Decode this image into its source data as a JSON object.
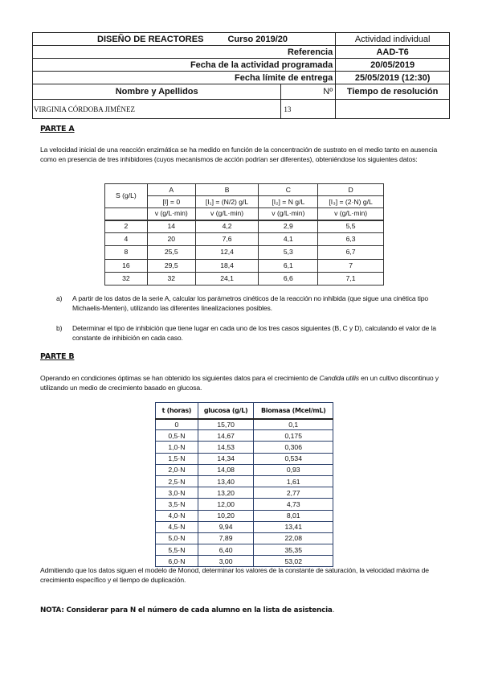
{
  "header": {
    "title": "DISEÑO DE REACTORES",
    "course": "Curso 2019/20",
    "activity_type": "Actividad individual",
    "reference_label": "Referencia",
    "reference": "AAD-T6",
    "scheduled_label": "Fecha de la actividad programada",
    "scheduled": "20/05/2019",
    "deadline_label": "Fecha límite de entrega",
    "deadline": "25/05/2019 (12:30)",
    "name_label": "Nombre y Apellidos",
    "number_label": "Nº",
    "time_label": "Tiempo de resolución",
    "name": "VIRGINIA CÓRDOBA JIMÉNEZ",
    "number": "13",
    "time": ""
  },
  "parte_a": {
    "heading": "PARTE A",
    "intro": "La velocidad inicial de una reacción enzimática se ha medido en función de la concentración de sustrato en el medio tanto en ausencia como en presencia de tres inhibidores (cuyos mecanismos de acción podrían ser diferentes), obteniéndose los siguientes datos:",
    "table": {
      "s_header": "S (g/L)",
      "series": [
        "A",
        "B",
        "C",
        "D"
      ],
      "conditions": [
        "[I] = 0",
        "[I₁] = (N/2) g/L",
        "[I₂] = N g/L",
        "[I₃] = (2·N) g/L"
      ],
      "unit": "v (g/L·min)",
      "rows": [
        [
          "2",
          "14",
          "4,2",
          "2,9",
          "5,5"
        ],
        [
          "4",
          "20",
          "7,6",
          "4,1",
          "6,3"
        ],
        [
          "8",
          "25,5",
          "12,4",
          "5,3",
          "6,7"
        ],
        [
          "16",
          "29,5",
          "18,4",
          "6,1",
          "7"
        ],
        [
          "32",
          "32",
          "24,1",
          "6,6",
          "7,1"
        ]
      ]
    },
    "questions": [
      {
        "marker": "a)",
        "text": "A partir de los datos de la serie A, calcular los parámetros cinéticos de la reacción no inhibida (que sigue una cinética tipo Michaelis-Menten), utilizando las diferentes linealizaciones posibles."
      },
      {
        "marker": "b)",
        "text": "Determinar el tipo de inhibición que tiene lugar en cada uno de los tres casos siguientes (B, C y D), calculando el valor de la constante de inhibición en cada caso."
      }
    ]
  },
  "parte_b": {
    "heading": "PARTE B",
    "intro_before": "Operando en condiciones óptimas se han obtenido los siguientes datos para el crecimiento de ",
    "organism": "Candida utilis",
    "intro_after": " en un cultivo discontinuo y utilizando un medio de crecimiento basado en glucosa.",
    "table": {
      "headers": [
        "t (horas)",
        "glucosa (g/L)",
        "Biomasa (Mcel/mL)"
      ],
      "rows": [
        [
          "0",
          "15,70",
          "0,1"
        ],
        [
          "0,5·N",
          "14,67",
          "0,175"
        ],
        [
          "1,0·N",
          "14,53",
          "0,306"
        ],
        [
          "1,5·N",
          "14,34",
          "0,534"
        ],
        [
          "2,0·N",
          "14,08",
          "0,93"
        ],
        [
          "2,5·N",
          "13,40",
          "1,61"
        ],
        [
          "3,0·N",
          "13,20",
          "2,77"
        ],
        [
          "3,5·N",
          "12,00",
          "4,73"
        ],
        [
          "4,0·N",
          "10,20",
          "8,01"
        ],
        [
          "4,5·N",
          "9,94",
          "13,41"
        ],
        [
          "5,0·N",
          "7,89",
          "22,08"
        ],
        [
          "5,5·N",
          "6,40",
          "35,35"
        ],
        [
          "6,0·N",
          "3,00",
          "53,02"
        ]
      ]
    },
    "question": "Admitiendo que los datos siguen el modelo de Monod, determinar los valores de la constante de saturación, la velocidad máxima de crecimiento específico y el tiempo de duplicación."
  },
  "nota": {
    "label": "NOTA",
    "text": ": Considerar para N el número de cada alumno en la lista de asistencia",
    "end": "."
  }
}
